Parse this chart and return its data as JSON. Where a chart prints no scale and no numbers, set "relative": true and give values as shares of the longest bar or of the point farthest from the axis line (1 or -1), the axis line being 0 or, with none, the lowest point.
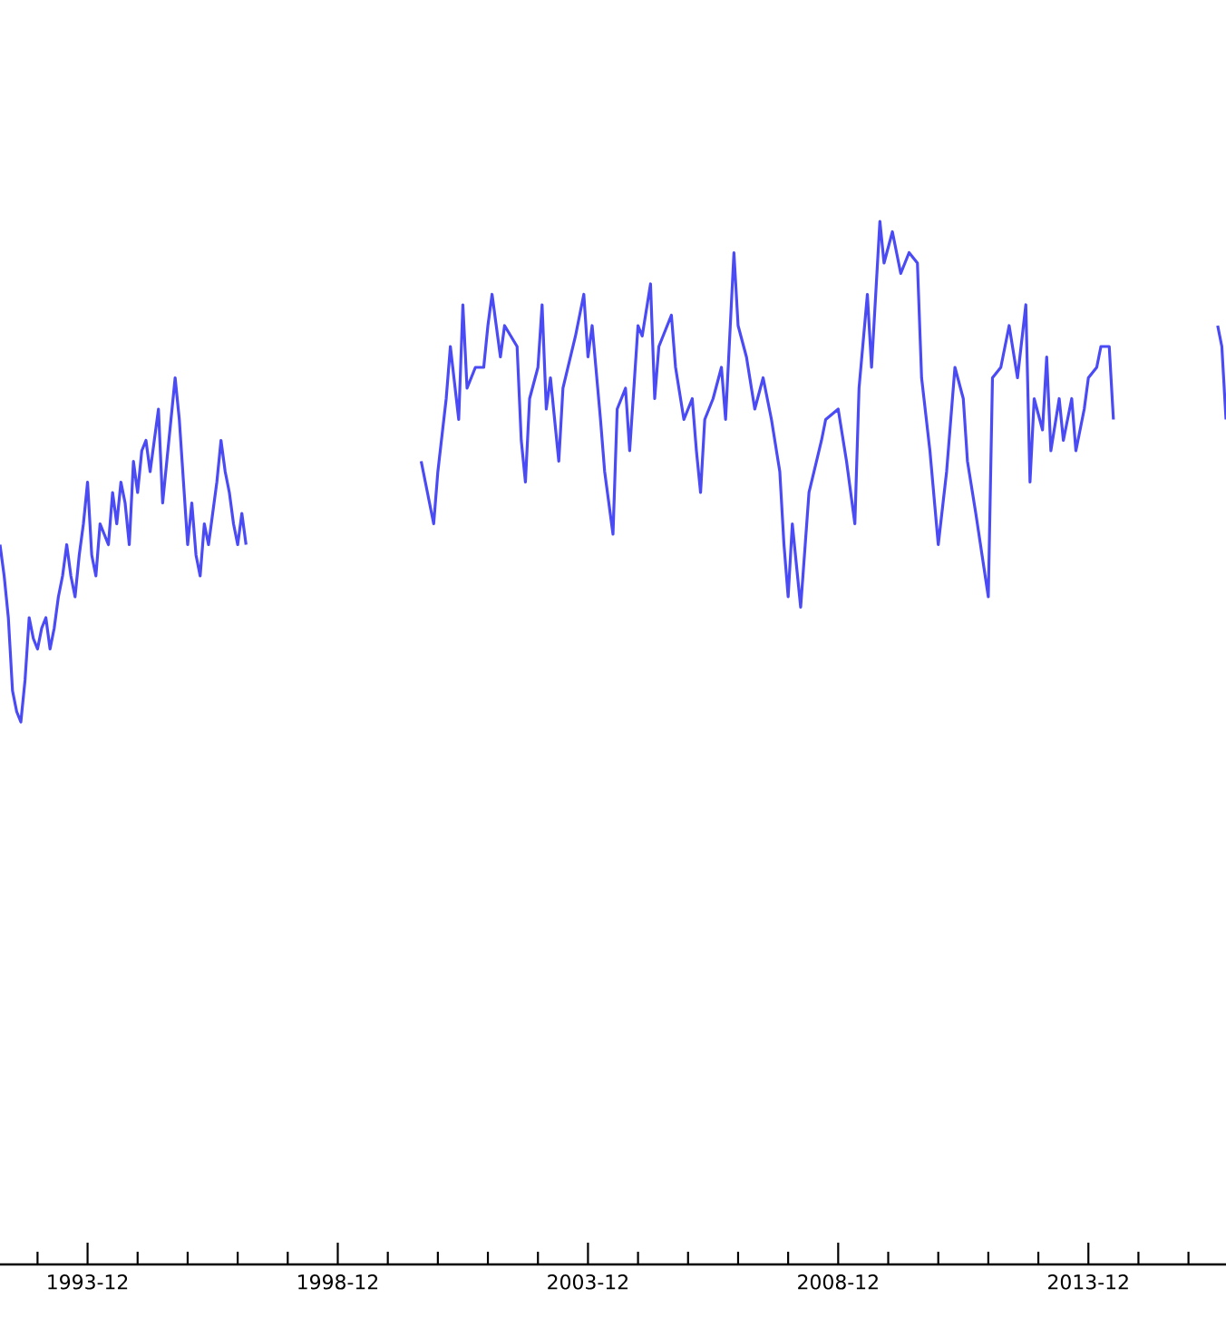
{
  "chart_data": {
    "type": "line",
    "relative": true,
    "color": "#4b4bf5",
    "x": [
      "1992-03",
      "1992-04",
      "1992-05",
      "1992-06",
      "1992-07",
      "1992-08",
      "1992-09",
      "1992-10",
      "1992-11",
      "1992-12",
      "1993-01",
      "1993-02",
      "1993-03",
      "1993-04",
      "1993-05",
      "1993-06",
      "1993-07",
      "1993-08",
      "1993-09",
      "1993-10",
      "1993-11",
      "1993-12",
      "1994-01",
      "1994-02",
      "1994-03",
      "1994-05",
      "1994-06",
      "1994-07",
      "1994-08",
      "1994-09",
      "1994-10",
      "1994-11",
      "1994-12",
      "1995-01",
      "1995-02",
      "1995-03",
      "1995-04",
      "1995-05",
      "1995-06",
      "1995-07",
      "1995-08",
      "1995-09",
      "1995-10",
      "1995-11",
      "1995-12",
      "1996-01",
      "1996-02",
      "1996-03",
      "1996-04",
      "1996-05",
      "1996-06",
      "1996-07",
      "1996-08",
      "1996-09",
      "1996-10",
      "1996-11",
      "1996-12",
      "1997-01",
      "1997-02",
      "1997-03",
      "2000-08",
      "2000-11",
      "2000-12",
      "2001-02",
      "2001-03",
      "2001-05",
      "2001-06",
      "2001-07",
      "2001-09",
      "2001-11",
      "2001-12",
      "2002-01",
      "2002-03",
      "2002-04",
      "2002-07",
      "2002-08",
      "2002-09",
      "2002-10",
      "2002-12",
      "2003-01",
      "2003-02",
      "2003-03",
      "2003-05",
      "2003-06",
      "2003-09",
      "2003-11",
      "2003-12",
      "2004-01",
      "2004-03",
      "2004-04",
      "2004-06",
      "2004-07",
      "2004-09",
      "2004-10",
      "2004-12",
      "2005-01",
      "2005-03",
      "2005-04",
      "2005-05",
      "2005-08",
      "2005-09",
      "2005-11",
      "2006-01",
      "2006-02",
      "2006-03",
      "2006-04",
      "2006-06",
      "2006-08",
      "2006-09",
      "2006-11",
      "2006-12",
      "2007-02",
      "2007-04",
      "2007-06",
      "2007-08",
      "2007-10",
      "2007-11",
      "2007-12",
      "2008-01",
      "2008-03",
      "2008-05",
      "2008-08",
      "2008-09",
      "2008-12",
      "2009-02",
      "2009-04",
      "2009-05",
      "2009-07",
      "2009-08",
      "2009-10",
      "2009-11",
      "2010-01",
      "2010-03",
      "2010-05",
      "2010-07",
      "2010-08",
      "2010-10",
      "2010-12",
      "2011-02",
      "2011-04",
      "2011-06",
      "2011-07",
      "2011-09",
      "2011-12",
      "2012-01",
      "2012-03",
      "2012-05",
      "2012-07",
      "2012-09",
      "2012-10",
      "2012-11",
      "2013-01",
      "2013-02",
      "2013-03",
      "2013-05",
      "2013-06",
      "2013-08",
      "2013-09",
      "2013-11",
      "2013-12",
      "2014-02",
      "2014-03",
      "2014-05",
      "2014-06",
      "2014-07",
      "2016-07",
      "2016-08",
      "2016-09"
    ],
    "values": [
      0.69,
      0.66,
      0.62,
      0.55,
      0.53,
      0.52,
      0.56,
      0.62,
      0.6,
      0.59,
      0.61,
      0.62,
      0.59,
      0.61,
      0.64,
      0.66,
      0.69,
      0.66,
      0.64,
      0.68,
      0.71,
      0.75,
      0.68,
      0.66,
      0.71,
      0.69,
      0.74,
      0.71,
      0.75,
      0.73,
      0.69,
      0.77,
      0.74,
      0.78,
      0.79,
      0.76,
      0.79,
      0.82,
      0.73,
      0.77,
      0.81,
      0.85,
      0.81,
      0.75,
      0.69,
      0.73,
      0.68,
      0.66,
      0.71,
      0.69,
      0.72,
      0.75,
      0.79,
      0.76,
      0.74,
      0.71,
      0.69,
      0.72,
      0.69,
      null,
      0.77,
      0.71,
      0.76,
      0.83,
      0.88,
      0.81,
      0.92,
      0.84,
      0.86,
      0.86,
      0.9,
      0.93,
      0.87,
      0.9,
      0.88,
      0.79,
      0.75,
      0.83,
      0.86,
      0.92,
      0.82,
      0.85,
      0.77,
      0.84,
      0.89,
      0.93,
      0.87,
      0.9,
      0.81,
      0.76,
      0.7,
      0.82,
      0.84,
      0.78,
      0.9,
      0.89,
      0.94,
      0.83,
      0.88,
      0.91,
      0.86,
      0.81,
      0.83,
      0.78,
      0.74,
      0.81,
      0.83,
      0.86,
      0.81,
      0.97,
      0.9,
      0.87,
      0.82,
      0.85,
      0.81,
      0.76,
      0.69,
      0.64,
      0.71,
      0.63,
      0.74,
      0.79,
      0.81,
      0.82,
      0.77,
      0.71,
      0.84,
      0.93,
      0.86,
      1.0,
      0.96,
      0.99,
      0.95,
      0.97,
      0.96,
      0.85,
      0.78,
      0.69,
      0.76,
      0.86,
      0.83,
      0.77,
      0.72,
      0.64,
      0.85,
      0.86,
      0.9,
      0.85,
      0.92,
      0.75,
      0.83,
      0.8,
      0.87,
      0.78,
      0.83,
      0.79,
      0.83,
      0.78,
      0.82,
      0.85,
      0.86,
      0.88,
      0.88,
      0.81,
      null,
      0.9,
      0.88,
      0.81
    ],
    "xlim": [
      "1992-03",
      "2016-09"
    ],
    "xticks": [
      {
        "value": "1992-12",
        "label": null
      },
      {
        "value": "1993-12",
        "label": "1993-12"
      },
      {
        "value": "1994-12",
        "label": null
      },
      {
        "value": "1995-12",
        "label": null
      },
      {
        "value": "1996-12",
        "label": null
      },
      {
        "value": "1997-12",
        "label": null
      },
      {
        "value": "1998-12",
        "label": "1998-12"
      },
      {
        "value": "1999-12",
        "label": null
      },
      {
        "value": "2000-12",
        "label": null
      },
      {
        "value": "2001-12",
        "label": null
      },
      {
        "value": "2002-12",
        "label": null
      },
      {
        "value": "2003-12",
        "label": "2003-12"
      },
      {
        "value": "2004-12",
        "label": null
      },
      {
        "value": "2005-12",
        "label": null
      },
      {
        "value": "2006-12",
        "label": null
      },
      {
        "value": "2007-12",
        "label": null
      },
      {
        "value": "2008-12",
        "label": "2008-12"
      },
      {
        "value": "2009-12",
        "label": null
      },
      {
        "value": "2010-12",
        "label": null
      },
      {
        "value": "2011-12",
        "label": null
      },
      {
        "value": "2012-12",
        "label": null
      },
      {
        "value": "2013-12",
        "label": "2013-12"
      },
      {
        "value": "2014-12",
        "label": null
      },
      {
        "value": "2015-12",
        "label": null
      }
    ]
  }
}
